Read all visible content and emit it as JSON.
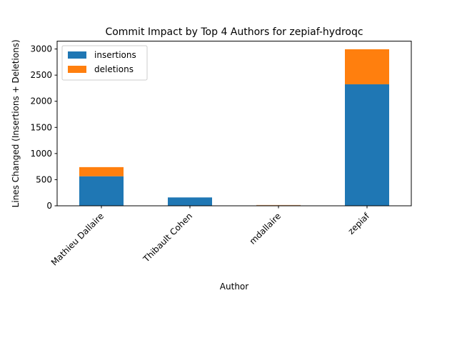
{
  "chart_data": {
    "type": "bar",
    "stacked": true,
    "title": "Commit Impact by Top 4 Authors for zepiaf-hydroqc",
    "xlabel": "Author",
    "ylabel": "Lines Changed (Insertions + Deletions)",
    "categories": [
      "Mathieu Dallaire",
      "Thibault Cohen",
      "mdallaire",
      "zepiaf"
    ],
    "series": [
      {
        "name": "insertions",
        "color": "#1f77b4",
        "values": [
          565,
          160,
          10,
          2325
        ]
      },
      {
        "name": "deletions",
        "color": "#ff7f0e",
        "values": [
          175,
          0,
          5,
          670
        ]
      }
    ],
    "ylim": [
      0,
      3150
    ],
    "yticks": [
      0,
      500,
      1000,
      1500,
      2000,
      2500,
      3000
    ],
    "grid": false,
    "legend_position": "top-left"
  }
}
